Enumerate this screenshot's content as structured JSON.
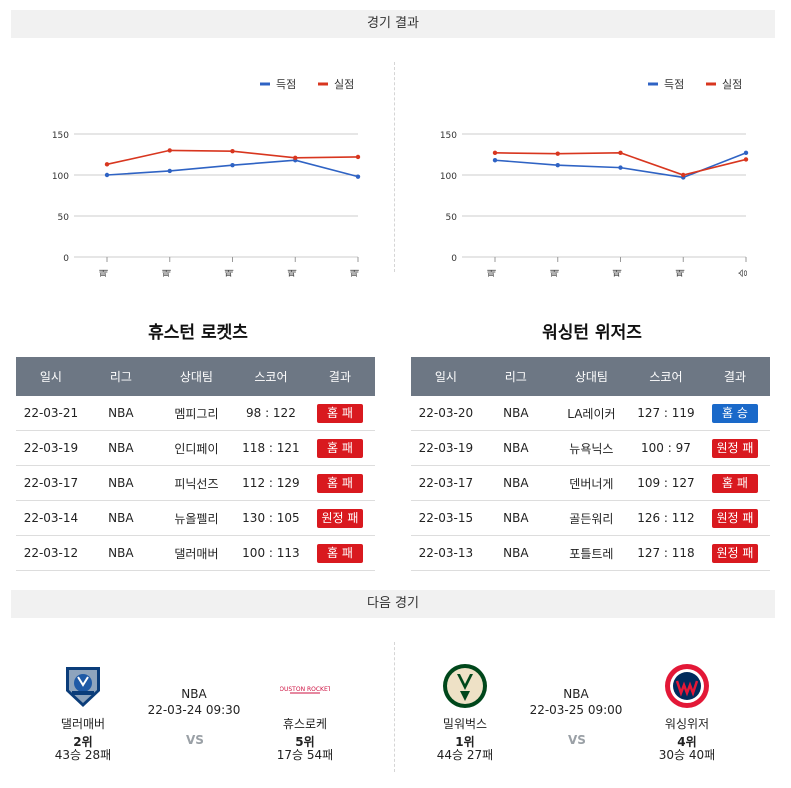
{
  "headers": {
    "results": "경기 결과",
    "next": "다음 경기"
  },
  "legend": {
    "scored": "득점",
    "conceded": "실점"
  },
  "colors": {
    "scored": "#2f63c4",
    "conceded": "#d8361f",
    "win": "#1a69c9",
    "loss": "#d9191f",
    "th": "#6d7784"
  },
  "columns": [
    "일시",
    "리그",
    "상대팀",
    "스코어",
    "결과"
  ],
  "teams": [
    {
      "name": "휴스턴 로켓츠",
      "games": [
        {
          "date": "22-03-21",
          "league": "NBA",
          "opponent": "멤피그리",
          "score": "98 : 122",
          "result": "홈 패",
          "win": false
        },
        {
          "date": "22-03-19",
          "league": "NBA",
          "opponent": "인디페이",
          "score": "118 : 121",
          "result": "홈 패",
          "win": false
        },
        {
          "date": "22-03-17",
          "league": "NBA",
          "opponent": "피닉선즈",
          "score": "112 : 129",
          "result": "홈 패",
          "win": false
        },
        {
          "date": "22-03-14",
          "league": "NBA",
          "opponent": "뉴올펠리",
          "score": "130 : 105",
          "result": "원정 패",
          "win": false
        },
        {
          "date": "22-03-12",
          "league": "NBA",
          "opponent": "댈러매버",
          "score": "100 : 113",
          "result": "홈 패",
          "win": false
        }
      ]
    },
    {
      "name": "워싱턴 위저즈",
      "games": [
        {
          "date": "22-03-20",
          "league": "NBA",
          "opponent": "LA레이커",
          "score": "127 : 119",
          "result": "홈 승",
          "win": true
        },
        {
          "date": "22-03-19",
          "league": "NBA",
          "opponent": "뉴욕닉스",
          "score": "100 : 97",
          "result": "원정 패",
          "win": false
        },
        {
          "date": "22-03-17",
          "league": "NBA",
          "opponent": "덴버너게",
          "score": "109 : 127",
          "result": "홈 패",
          "win": false
        },
        {
          "date": "22-03-15",
          "league": "NBA",
          "opponent": "골든워리",
          "score": "126 : 112",
          "result": "원정 패",
          "win": false
        },
        {
          "date": "22-03-13",
          "league": "NBA",
          "opponent": "포틀트레",
          "score": "127 : 118",
          "result": "원정 패",
          "win": false
        }
      ]
    }
  ],
  "chart_data": [
    {
      "type": "line",
      "categories": [
        "패",
        "패",
        "패",
        "패",
        "패"
      ],
      "series": [
        {
          "name": "득점",
          "values": [
            100,
            105,
            112,
            118,
            98
          ]
        },
        {
          "name": "실점",
          "values": [
            113,
            130,
            129,
            121,
            122
          ]
        }
      ],
      "yticks": [
        "0",
        "50",
        "100",
        "150"
      ],
      "ylim": [
        0,
        150
      ],
      "grid": true,
      "legend": "top-right"
    },
    {
      "type": "line",
      "categories": [
        "패",
        "패",
        "패",
        "패",
        "승"
      ],
      "series": [
        {
          "name": "득점",
          "values": [
            118,
            112,
            109,
            97,
            127
          ]
        },
        {
          "name": "실점",
          "values": [
            127,
            126,
            127,
            100,
            119
          ]
        }
      ],
      "yticks": [
        "0",
        "50",
        "100",
        "150"
      ],
      "ylim": [
        0,
        150
      ],
      "grid": true,
      "legend": "top-right"
    }
  ],
  "next_games": [
    {
      "league": "NBA",
      "datetime": "22-03-24 09:30",
      "vs": "VS",
      "home": {
        "name": "댈러매버",
        "rank": "2위",
        "record": "43승 28패",
        "logo": "mavericks-logo"
      },
      "away": {
        "name": "휴스로케",
        "rank": "5위",
        "record": "17승 54패",
        "logo": "rockets-logo"
      }
    },
    {
      "league": "NBA",
      "datetime": "22-03-25 09:00",
      "vs": "VS",
      "home": {
        "name": "밀워벅스",
        "rank": "1위",
        "record": "44승 27패",
        "logo": "bucks-logo"
      },
      "away": {
        "name": "워싱위저",
        "rank": "4위",
        "record": "30승 40패",
        "logo": "wizards-logo"
      }
    }
  ]
}
